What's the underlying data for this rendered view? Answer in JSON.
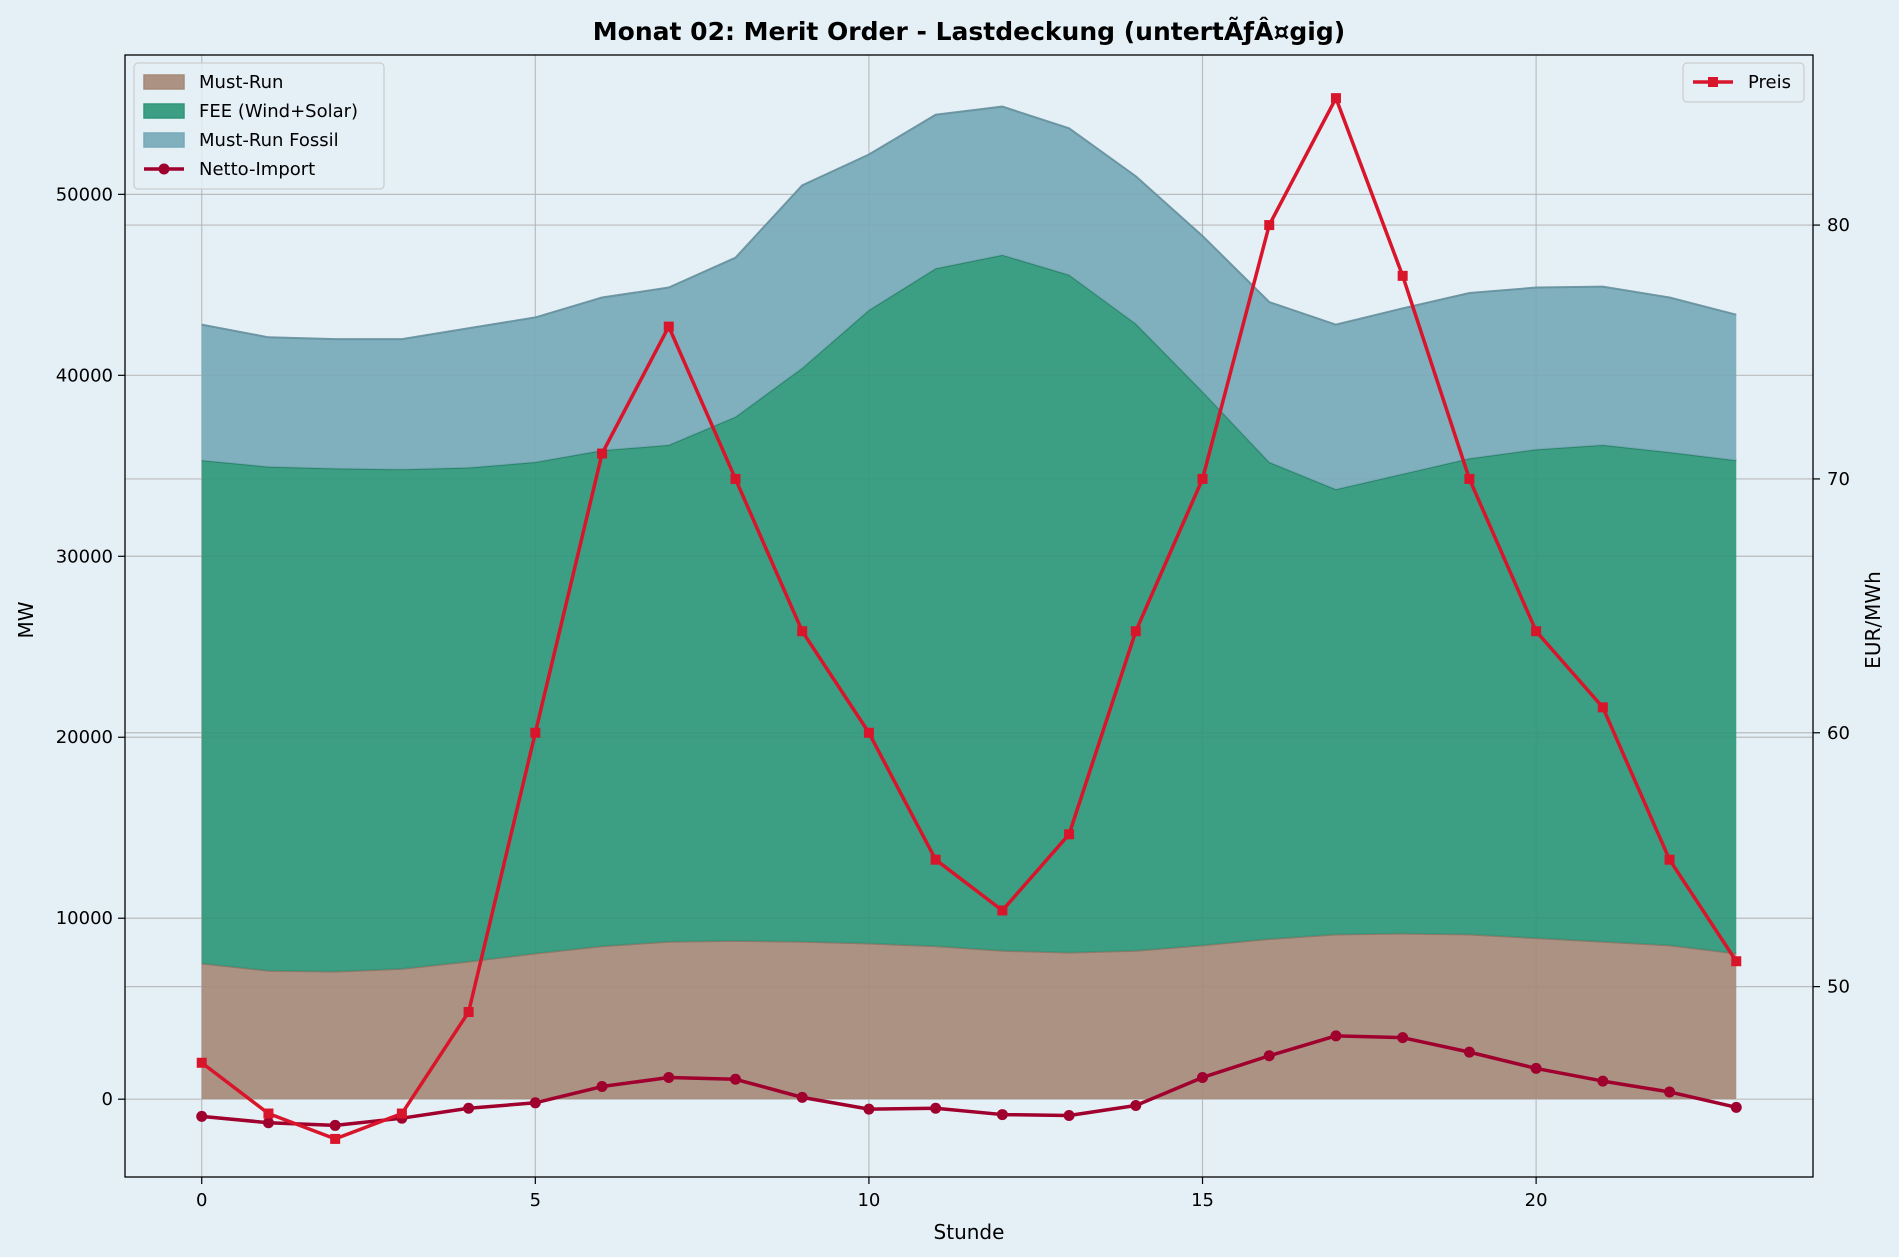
{
  "chart_data": {
    "type": "area",
    "title": "Monat 02: Merit Order - Lastdeckung (untertÃƒÂ¤gig)",
    "xlabel": "Stunde",
    "ylabel": "MW",
    "y2label": "EUR/MWh",
    "x": [
      0,
      1,
      2,
      3,
      4,
      5,
      6,
      7,
      8,
      9,
      10,
      11,
      12,
      13,
      14,
      15,
      16,
      17,
      18,
      19,
      20,
      21,
      22,
      23
    ],
    "xlim": [
      -1.15,
      24.15
    ],
    "ylim": [
      -4300,
      57700
    ],
    "y2lim": [
      42.5,
      86.7
    ],
    "xticks": [
      0,
      5,
      10,
      15,
      20
    ],
    "yticks": [
      0,
      10000,
      20000,
      30000,
      40000,
      50000
    ],
    "y2ticks": [
      50,
      60,
      70,
      80
    ],
    "grid": true,
    "stacked_areas": [
      {
        "name": "Must-Run",
        "color": "#a68a78",
        "values": [
          7500,
          7100,
          7050,
          7200,
          7600,
          8050,
          8450,
          8700,
          8750,
          8700,
          8600,
          8450,
          8200,
          8100,
          8200,
          8500,
          8850,
          9100,
          9150,
          9100,
          8900,
          8700,
          8500,
          8050
        ]
      },
      {
        "name": "FEE (Wind+Solar)",
        "color": "#2e9778",
        "values": [
          27800,
          27850,
          27800,
          27600,
          27300,
          27150,
          27400,
          27450,
          28950,
          31700,
          35000,
          37450,
          38450,
          37450,
          34650,
          30600,
          26350,
          24600,
          25400,
          26300,
          27000,
          27450,
          27250,
          27250
        ]
      },
      {
        "name": "Must-Run Fossil",
        "color": "#77a9b8",
        "values": [
          7500,
          7150,
          7150,
          7200,
          7700,
          8000,
          8450,
          8700,
          8800,
          10100,
          8600,
          8500,
          8200,
          8100,
          8150,
          8600,
          8850,
          9100,
          9150,
          9150,
          8950,
          8750,
          8550,
          8050
        ]
      }
    ],
    "series": [
      {
        "name": "Netto-Import",
        "axis": "left",
        "color": "#a0002e",
        "marker": "circle",
        "values": [
          -950,
          -1300,
          -1450,
          -1050,
          -500,
          -200,
          700,
          1200,
          1100,
          100,
          -550,
          -500,
          -850,
          -900,
          -350,
          1200,
          2400,
          3500,
          3400,
          2600,
          1700,
          1000,
          400,
          -450
        ]
      },
      {
        "name": "Preis",
        "axis": "right",
        "color": "#d9152c",
        "marker": "square",
        "values": [
          47,
          45,
          44,
          45,
          49,
          60,
          71,
          76,
          70,
          64,
          60,
          55,
          53,
          56,
          64,
          70,
          80,
          85,
          78,
          70,
          64,
          61,
          55,
          51
        ]
      }
    ],
    "legend_left": [
      "Must-Run",
      "FEE (Wind+Solar)",
      "Must-Run Fossil",
      "Netto-Import"
    ],
    "legend_right": [
      "Preis"
    ],
    "legend_placement": [
      "upper left",
      "upper right"
    ]
  }
}
